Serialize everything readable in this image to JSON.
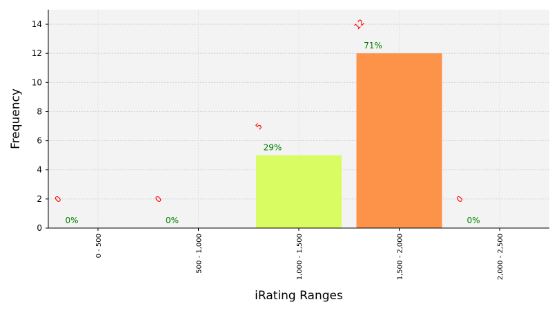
{
  "chart_data": {
    "type": "bar",
    "title": "",
    "xlabel": "iRating Ranges",
    "ylabel": "Frequency",
    "categories": [
      "0 - 500",
      "500 - 1,000",
      "1,000 - 1,500",
      "1,500 - 2,000",
      "2,000 - 2,500"
    ],
    "values": [
      0,
      0,
      5,
      12,
      0
    ],
    "count_labels": [
      "0",
      "0",
      "5",
      "12",
      "0"
    ],
    "percent_labels": [
      "0%",
      "0%",
      "29%",
      "71%",
      "0%"
    ],
    "bar_colors": [
      "#dfff6e",
      "#dfff6e",
      "#d9fc63",
      "#fd9249",
      "#fd9249"
    ],
    "count_label_color": "#ff0000",
    "percent_label_color": "#008000",
    "plot_background": "#f3f3f3",
    "ylim": [
      0,
      15
    ],
    "yticks": [
      0,
      2,
      4,
      6,
      8,
      10,
      12,
      14
    ],
    "grid": true
  }
}
